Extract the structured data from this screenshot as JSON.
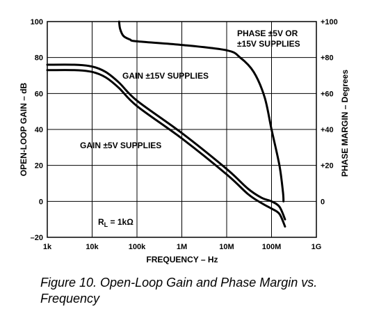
{
  "chart_data": {
    "type": "line",
    "caption": "Figure 10. Open-Loop Gain and Phase Margin vs. Frequency",
    "xlabel": "FREQUENCY – Hz",
    "ylabel_left": "OPEN-LOOP GAIN – dB",
    "ylabel_right": "PHASE MARGIN – Degrees",
    "x_scale": "log",
    "x_ticks": [
      {
        "value": 1000,
        "label": "1k"
      },
      {
        "value": 10000,
        "label": "10k"
      },
      {
        "value": 100000,
        "label": "100k"
      },
      {
        "value": 1000000,
        "label": "1M"
      },
      {
        "value": 10000000,
        "label": "10M"
      },
      {
        "value": 100000000,
        "label": "100M"
      },
      {
        "value": 1000000000,
        "label": "1G"
      }
    ],
    "ylim_left": [
      -20,
      100
    ],
    "y_ticks_left": [
      {
        "value": 100,
        "label": "100"
      },
      {
        "value": 80,
        "label": "80"
      },
      {
        "value": 60,
        "label": "60"
      },
      {
        "value": 40,
        "label": "40"
      },
      {
        "value": 20,
        "label": "20"
      },
      {
        "value": 0,
        "label": "0"
      },
      {
        "value": -20,
        "label": "–20"
      }
    ],
    "ylim_right": [
      -20,
      100
    ],
    "y_ticks_right": [
      {
        "value": 100,
        "label": "+100"
      },
      {
        "value": 80,
        "label": "+80"
      },
      {
        "value": 60,
        "label": "+60"
      },
      {
        "value": 40,
        "label": "+40"
      },
      {
        "value": 20,
        "label": "+20"
      },
      {
        "value": 0,
        "label": "0"
      }
    ],
    "grid": true,
    "series": [
      {
        "name": "GAIN ±15V SUPPLIES",
        "axis": "left",
        "x": [
          1000,
          4000,
          10000,
          20000,
          40000,
          100000,
          1000000,
          10000000,
          30000000,
          60000000,
          100000000,
          150000000,
          200000000
        ],
        "y": [
          76,
          76,
          75,
          72,
          66,
          56,
          38,
          18,
          7,
          2,
          0,
          -3,
          -10
        ]
      },
      {
        "name": "GAIN ±5V SUPPLIES",
        "axis": "left",
        "x": [
          1000,
          4000,
          10000,
          20000,
          40000,
          100000,
          1000000,
          10000000,
          30000000,
          60000000,
          100000000,
          150000000,
          200000000
        ],
        "y": [
          73,
          73,
          72,
          69,
          63,
          53,
          35,
          15,
          4,
          -1,
          -4,
          -7,
          -14
        ]
      },
      {
        "name": "PHASE ±5V OR ±15V SUPPLIES",
        "axis": "right",
        "x": [
          40000,
          42000,
          50000,
          70000,
          100000,
          1000000,
          10000000,
          20000000,
          40000000,
          70000000,
          100000000,
          150000000,
          180000000,
          185000000
        ],
        "y": [
          100,
          96,
          92,
          90,
          89,
          87,
          84,
          80,
          72,
          58,
          40,
          20,
          5,
          0
        ]
      }
    ],
    "annotations": [
      {
        "id": "phase-line1",
        "text": "PHASE ±5V OR"
      },
      {
        "id": "phase-line2",
        "text": "±15V SUPPLIES"
      },
      {
        "id": "gain15",
        "text": "GAIN ±15V SUPPLIES"
      },
      {
        "id": "gain5",
        "text": "GAIN ±5V SUPPLIES"
      },
      {
        "id": "rl",
        "text": "R",
        "subscript": "L",
        "suffix": " = 1kΩ"
      }
    ]
  }
}
